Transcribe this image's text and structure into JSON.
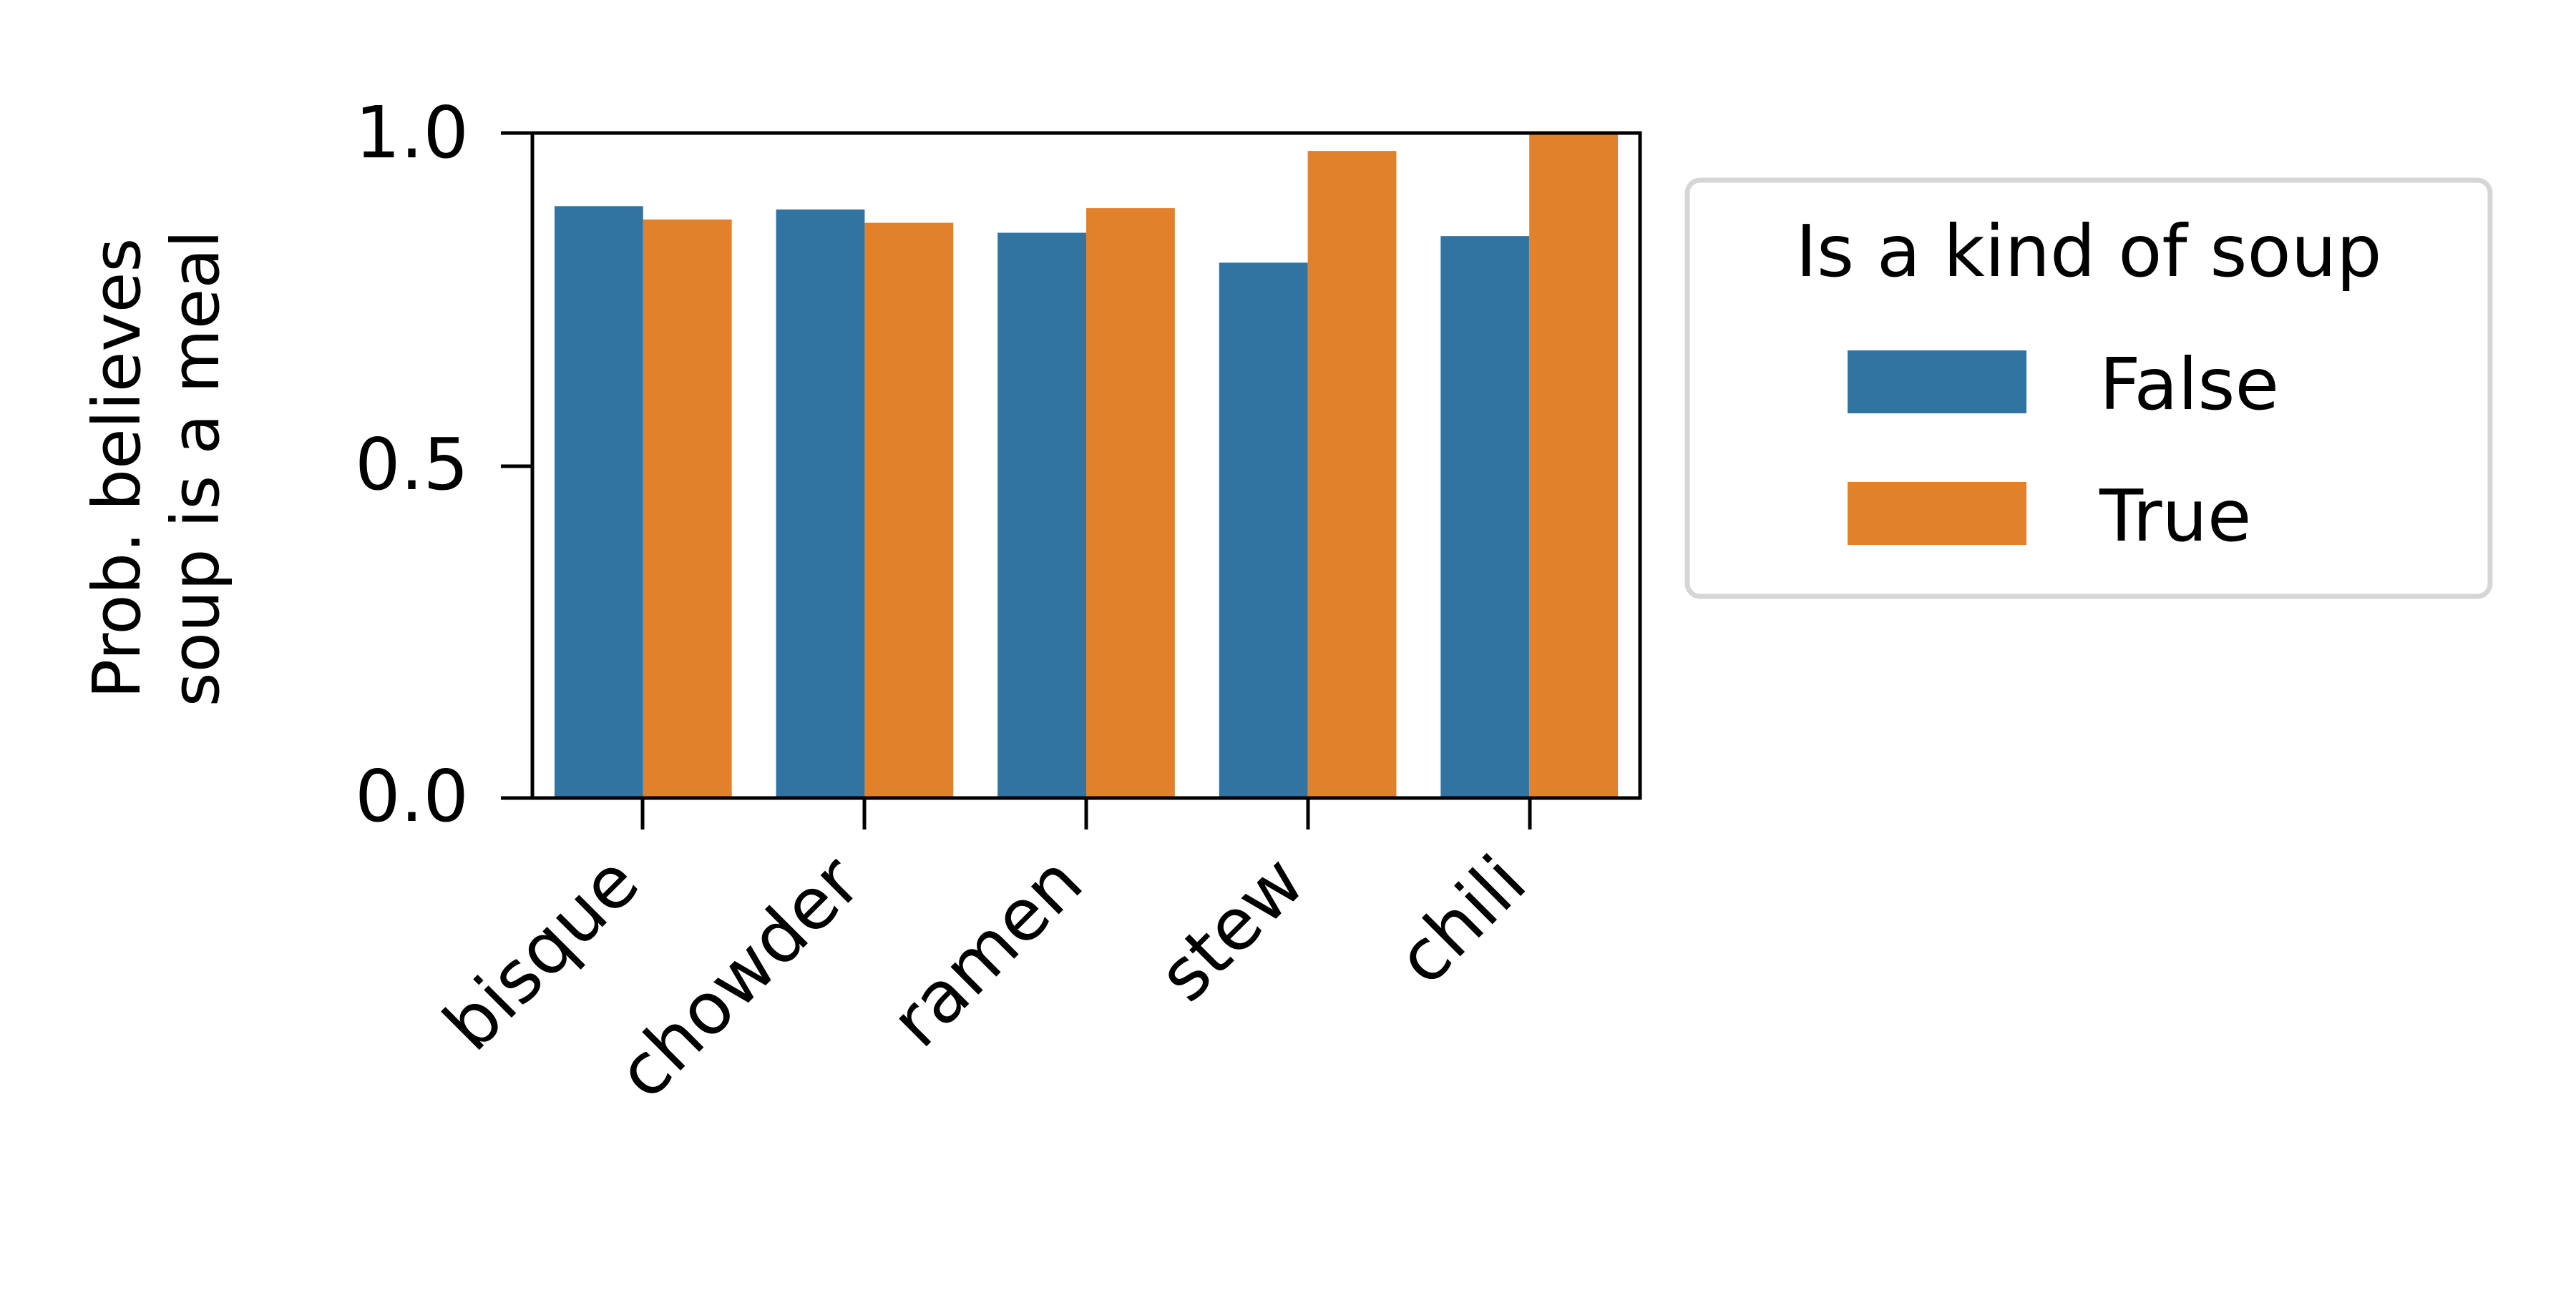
{
  "chart_data": {
    "type": "bar",
    "categories": [
      "bisque",
      "chowder",
      "ramen",
      "stew",
      "chili"
    ],
    "series": [
      {
        "name": "False",
        "values": [
          0.89,
          0.885,
          0.85,
          0.805,
          0.845
        ],
        "color": "#3274a1"
      },
      {
        "name": "True",
        "values": [
          0.87,
          0.865,
          0.887,
          0.973,
          1.0
        ],
        "color": "#e1812c"
      }
    ],
    "ylabel_lines": [
      "Prob. believes",
      "soup is a meal"
    ],
    "xlabel": "",
    "ylim": [
      0,
      1.0
    ],
    "yticks": [
      {
        "value": 0.0,
        "label": "0.0"
      },
      {
        "value": 0.5,
        "label": "0.5"
      },
      {
        "value": 1.0,
        "label": "1.0"
      }
    ],
    "xtick_rotation": 45,
    "grid": false,
    "legend": {
      "title": "Is a kind of soup",
      "placement": "outside-right",
      "entries": [
        "False",
        "True"
      ]
    }
  }
}
